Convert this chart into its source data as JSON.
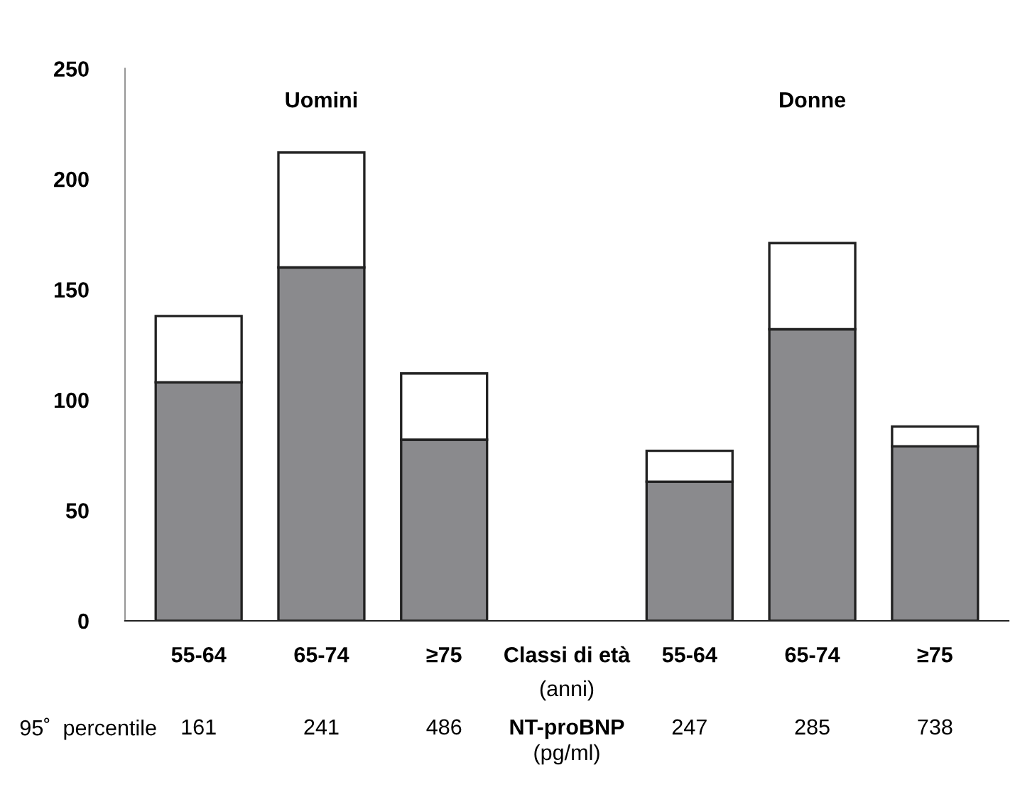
{
  "chart_data": {
    "type": "bar",
    "stacked": true,
    "categories": [
      "55-64",
      "65-74",
      "≥75",
      "Classi di età",
      "55-64",
      "65-74",
      "≥75"
    ],
    "series": [
      {
        "color": "#8a8a8d",
        "values": [
          108,
          160,
          82,
          null,
          63,
          132,
          79
        ]
      },
      {
        "color": "#ffffff",
        "values": [
          30,
          52,
          30,
          null,
          14,
          39,
          9
        ]
      }
    ],
    "ylim": [
      0,
      250
    ],
    "yticks": [
      0,
      50,
      100,
      150,
      200,
      250
    ],
    "grid": false,
    "legend": false,
    "annotations": [
      "Uomini",
      "Donne",
      "(anni)",
      "95˚  percentile",
      "161",
      "241",
      "486",
      "NT-proBNP",
      "(pg/ml)",
      "247",
      "285",
      "738"
    ]
  }
}
